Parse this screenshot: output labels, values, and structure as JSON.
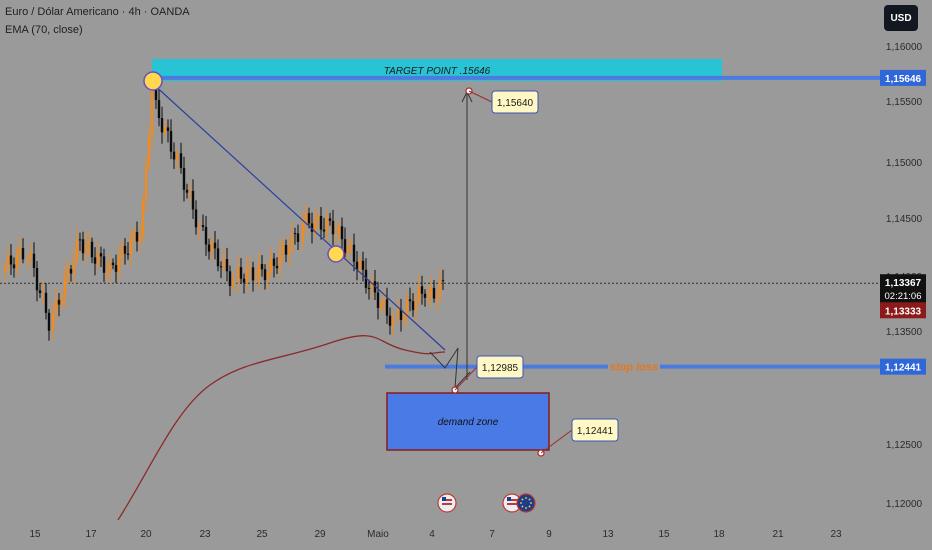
{
  "header": {
    "symbol_line": "Euro / Dólar Americano · 4h · OANDA",
    "indicator_line": "EMA (70, close)",
    "currency_button": "USD"
  },
  "colors": {
    "background": "#9a9a9a",
    "bull_candle": "#f28b1e",
    "bear_candle": "#0c0c0c",
    "trend_line": "#2a3f9e",
    "ema": "#8b2b2b",
    "target_box": "#29c3d6",
    "demand_zone": "#4a7ae6",
    "price_line": "#4a7be0",
    "stop_loss_text": "#e8761a",
    "callout_bg": "#fff8c4",
    "marker_fill": "#ffd84d"
  },
  "chart_data": {
    "type": "candlestick",
    "title": "Euro / Dólar Americano · 4h · OANDA",
    "x_ticks": [
      "15",
      "17",
      "20",
      "23",
      "25",
      "29",
      "Maio",
      "4",
      "7",
      "9",
      "13",
      "15",
      "18",
      "21",
      "23"
    ],
    "y_ticks": [
      "1,16000",
      "1,15500",
      "1,15000",
      "1,14500",
      "1,14000",
      "1,13500",
      "1,12500",
      "1,12000"
    ],
    "ylim": [
      1.119,
      1.165
    ],
    "price_badges": [
      {
        "label": "1,15646",
        "value": 1.15646,
        "kind": "target"
      },
      {
        "label": "1,13367",
        "value": 1.13367,
        "kind": "last",
        "countdown": "02:21:06"
      },
      {
        "label": "1,13333",
        "value": 1.13333,
        "kind": "ema"
      },
      {
        "label": "1,12441",
        "value": 1.12441,
        "kind": "stop"
      }
    ],
    "annotations": {
      "target_box": "TARGET POINT .15646",
      "demand_zone": "demand zone",
      "stop_loss": "stop loss",
      "callouts": [
        "1,15640",
        "1,12985",
        "1,12441"
      ]
    },
    "ema": {
      "name": "EMA (70, close)",
      "period": 70
    }
  }
}
